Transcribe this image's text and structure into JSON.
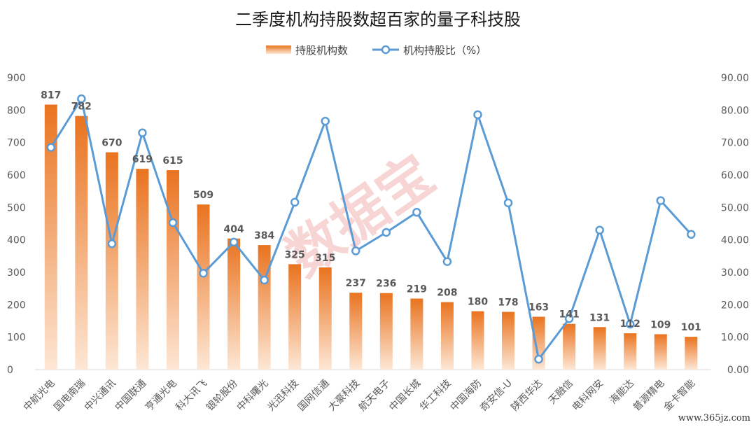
{
  "chart_data": {
    "type": "bar",
    "title": "二季度机构持股数超百家的量子科技股",
    "categories": [
      "中航光电",
      "国电南瑞",
      "中兴通讯",
      "中国联通",
      "亨通光电",
      "科大讯飞",
      "银轮股份",
      "中科曙光",
      "光迅科技",
      "国网信通",
      "大豪科技",
      "航天电子",
      "中国长城",
      "华工科技",
      "中国海防",
      "奇安信-U",
      "陕西华达",
      "天融信",
      "电科网安",
      "海能达",
      "普源精电",
      "金卡智能"
    ],
    "series": [
      {
        "name": "持股机构数",
        "type": "bar",
        "axis": "left",
        "values": [
          817,
          782,
          670,
          619,
          615,
          509,
          404,
          384,
          325,
          315,
          237,
          236,
          219,
          208,
          180,
          178,
          163,
          141,
          131,
          112,
          109,
          101
        ]
      },
      {
        "name": "机构持股比（%）",
        "type": "line",
        "axis": "right",
        "values": [
          68.5,
          83.5,
          38.8,
          73.0,
          45.3,
          29.7,
          39.3,
          27.6,
          51.6,
          76.6,
          36.6,
          42.3,
          48.5,
          33.3,
          78.6,
          51.4,
          3.2,
          15.7,
          43.0,
          14.0,
          52.1,
          41.7
        ]
      }
    ],
    "y_left": {
      "range": [
        0,
        900
      ],
      "ticks": [
        "0",
        "100",
        "200",
        "300",
        "400",
        "500",
        "600",
        "700",
        "800",
        "900"
      ]
    },
    "y_right": {
      "range": [
        0,
        90
      ],
      "ticks": [
        "0.00",
        "10.00",
        "20.00",
        "30.00",
        "40.00",
        "50.00",
        "60.00",
        "70.00",
        "80.00",
        "90.00"
      ]
    },
    "legend_position": "top-center",
    "grid": false,
    "colors": {
      "bar_top": "#e9731f",
      "bar_bottom": "#fde7d5",
      "line": "#5b9bd5",
      "marker_fill": "#ffffff"
    }
  },
  "watermark": "数据宝",
  "site_watermark": "www.365jz.com"
}
